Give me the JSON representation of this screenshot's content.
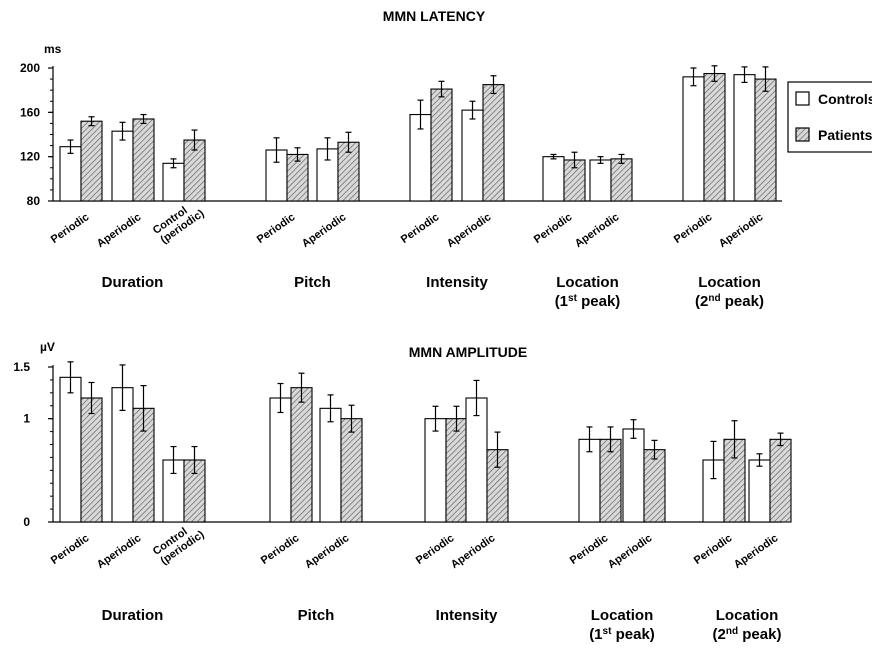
{
  "chart_data": [
    {
      "type": "bar",
      "title": "MMN LATENCY",
      "ylabel": "ms",
      "ylim": [
        80,
        200
      ],
      "yticks": [
        "80",
        "120",
        "160",
        "200"
      ],
      "grid": false,
      "legend": {
        "placement": "right",
        "entries": [
          "Controls",
          "Patients"
        ]
      },
      "groups": [
        {
          "name": "Duration",
          "sub": "",
          "categories": [
            [
              "Periodic"
            ],
            [
              "Aperiodic"
            ],
            [
              "Control",
              "(periodic)"
            ]
          ]
        },
        {
          "name": "Pitch",
          "sub": "",
          "categories": [
            [
              "Periodic"
            ],
            [
              "Aperiodic"
            ]
          ]
        },
        {
          "name": "Intensity",
          "sub": "",
          "categories": [
            [
              "Periodic"
            ],
            [
              "Aperiodic"
            ]
          ]
        },
        {
          "name": "Location",
          "sub": "(1st peak)",
          "categories": [
            [
              "Periodic"
            ],
            [
              "Aperiodic"
            ]
          ]
        },
        {
          "name": "Location",
          "sub": "(2nd peak)",
          "categories": [
            [
              "Periodic"
            ],
            [
              "Aperiodic"
            ]
          ]
        }
      ],
      "series": [
        {
          "name": "Controls",
          "values": [
            129,
            143,
            114,
            126,
            127,
            158,
            162,
            120,
            117,
            192,
            194
          ],
          "errors": [
            6,
            8,
            4,
            11,
            10,
            13,
            8,
            2,
            3,
            8,
            7
          ]
        },
        {
          "name": "Patients",
          "values": [
            152,
            154,
            135,
            122,
            133,
            181,
            185,
            117,
            118,
            195,
            190
          ],
          "errors": [
            4,
            4,
            9,
            6,
            9,
            7,
            8,
            7,
            4,
            7,
            11
          ]
        }
      ]
    },
    {
      "type": "bar",
      "title": "MMN AMPLITUDE",
      "ylabel": "µV",
      "ylim": [
        0,
        1.5
      ],
      "yticks": [
        "0",
        "1",
        "1.5"
      ],
      "grid": false,
      "legend": {
        "placement": "right",
        "entries": [
          "Controls",
          "Patients"
        ]
      },
      "groups": [
        {
          "name": "Duration",
          "sub": "",
          "categories": [
            [
              "Periodic"
            ],
            [
              "Aperiodic"
            ],
            [
              "Control",
              "(periodic)"
            ]
          ]
        },
        {
          "name": "Pitch",
          "sub": "",
          "categories": [
            [
              "Periodic"
            ],
            [
              "Aperiodic"
            ]
          ]
        },
        {
          "name": "Intensity",
          "sub": "",
          "categories": [
            [
              "Periodic"
            ],
            [
              "Aperiodic"
            ]
          ]
        },
        {
          "name": "Location",
          "sub": "(1st peak)",
          "categories": [
            [
              "Periodic"
            ],
            [
              "Aperiodic"
            ]
          ]
        },
        {
          "name": "Location",
          "sub": "(2nd peak)",
          "categories": [
            [
              "Periodic"
            ],
            [
              "Aperiodic"
            ]
          ]
        }
      ],
      "series": [
        {
          "name": "Controls",
          "values": [
            1.4,
            1.3,
            0.6,
            1.2,
            1.1,
            1.0,
            1.2,
            0.8,
            0.9,
            0.6,
            0.6
          ],
          "errors": [
            0.15,
            0.22,
            0.13,
            0.14,
            0.13,
            0.12,
            0.17,
            0.12,
            0.09,
            0.18,
            0.06
          ]
        },
        {
          "name": "Patients",
          "values": [
            1.2,
            1.1,
            0.6,
            1.3,
            1.0,
            1.0,
            0.7,
            0.8,
            0.7,
            0.8,
            0.8
          ]
        }
      ]
    }
  ],
  "legend_colors": {
    "Controls": "#ffffff",
    "Patients": "#9a9a9a"
  }
}
